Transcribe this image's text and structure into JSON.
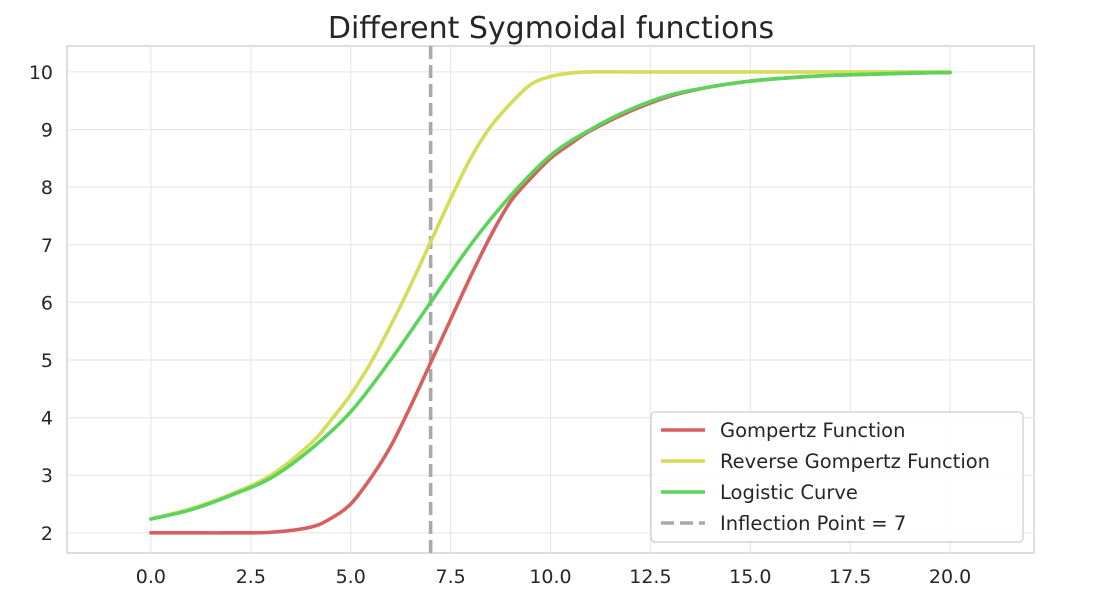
{
  "chart_data": {
    "type": "line",
    "title": "Different Sygmoidal functions",
    "xlabel": "",
    "ylabel": "",
    "xlim": [
      -2.1,
      22.1
    ],
    "ylim": [
      1.65,
      10.45
    ],
    "x_ticks": [
      0,
      2.5,
      5,
      7.5,
      10,
      12.5,
      15,
      17.5,
      20
    ],
    "x_tick_labels": [
      "0.0",
      "2.5",
      "5.0",
      "7.5",
      "10.0",
      "12.5",
      "15.0",
      "17.5",
      "20.0"
    ],
    "y_ticks": [
      2,
      3,
      4,
      5,
      6,
      7,
      8,
      9,
      10
    ],
    "y_tick_labels": [
      "2",
      "3",
      "4",
      "5",
      "6",
      "7",
      "8",
      "9",
      "10"
    ],
    "grid": true,
    "legend_position": "bottom-right",
    "series": [
      {
        "name": "Gompertz Function",
        "color": "#d65f5f",
        "x": [
          0,
          1,
          2,
          3,
          4,
          4.5,
          5,
          5.5,
          6,
          6.5,
          7,
          7.5,
          8,
          8.5,
          9,
          9.5,
          10,
          10.5,
          11,
          12,
          13,
          14,
          15,
          16,
          17,
          18,
          19,
          20
        ],
        "values": [
          2.0,
          2.0,
          2.0,
          2.01,
          2.1,
          2.25,
          2.5,
          2.95,
          3.5,
          4.2,
          4.95,
          5.7,
          6.45,
          7.15,
          7.75,
          8.15,
          8.5,
          8.75,
          8.98,
          9.32,
          9.58,
          9.74,
          9.84,
          9.9,
          9.94,
          9.96,
          9.98,
          9.99
        ]
      },
      {
        "name": "Reverse Gompertz Function",
        "color": "#d5dc5a",
        "x": [
          0,
          1,
          2,
          3,
          4,
          4.5,
          5,
          5.5,
          6,
          6.5,
          7,
          7.5,
          8,
          8.5,
          9,
          9.5,
          10,
          10.5,
          11,
          12,
          14,
          16,
          18,
          20
        ],
        "values": [
          2.24,
          2.42,
          2.67,
          3.0,
          3.55,
          3.95,
          4.4,
          4.95,
          5.6,
          6.3,
          7.05,
          7.8,
          8.5,
          9.05,
          9.45,
          9.78,
          9.92,
          9.98,
          10.0,
          10.0,
          10.0,
          10.0,
          10.0,
          10.0
        ]
      },
      {
        "name": "Logistic Curve",
        "color": "#5bd45b",
        "x": [
          0,
          1,
          2,
          3,
          4,
          5,
          6,
          7,
          8,
          9,
          10,
          11,
          12,
          13,
          14,
          15,
          16,
          17,
          18,
          19,
          20
        ],
        "values": [
          2.24,
          2.4,
          2.65,
          2.95,
          3.45,
          4.1,
          5.0,
          6.0,
          7.0,
          7.85,
          8.55,
          9.0,
          9.35,
          9.6,
          9.74,
          9.84,
          9.9,
          9.94,
          9.96,
          9.98,
          9.99
        ]
      }
    ],
    "reference_lines": [
      {
        "name": "Inflection Point = 7",
        "orientation": "vertical",
        "x": 7,
        "color": "#a9a9a9",
        "style": "dashed"
      }
    ]
  }
}
